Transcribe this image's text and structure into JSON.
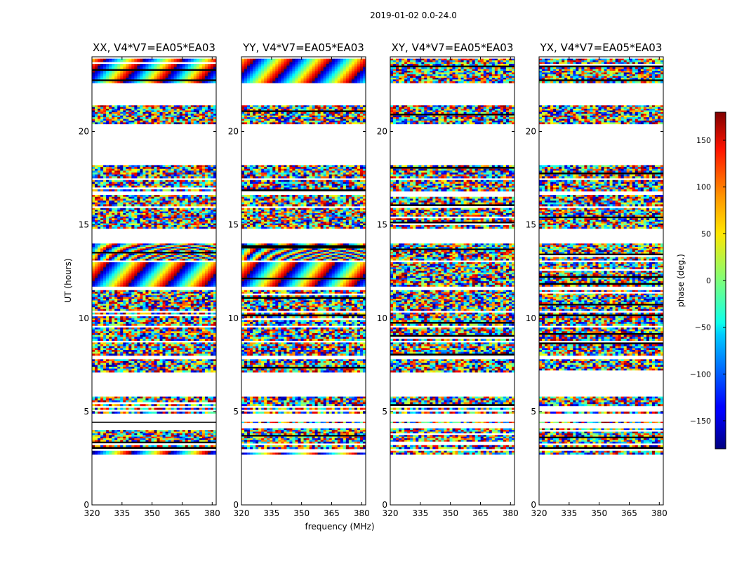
{
  "chart_data": {
    "type": "heatmap",
    "suptitle": "2019-01-02 0.0-24.0",
    "xlabel": "frequency (MHz)",
    "ylabel": "UT (hours)",
    "xlim": [
      320,
      382
    ],
    "ylim": [
      0,
      24
    ],
    "x_ticks": [
      320,
      335,
      350,
      365,
      380
    ],
    "y_ticks": [
      0,
      5,
      10,
      15,
      20
    ],
    "panels": [
      {
        "title": "XX, V4*V7=EA05*EA03"
      },
      {
        "title": "YY, V4*V7=EA05*EA03"
      },
      {
        "title": "XY, V4*V7=EA05*EA03"
      },
      {
        "title": "YX, V4*V7=EA05*EA03"
      }
    ],
    "colorbar": {
      "label": "phase (deg.)",
      "range": [
        -180,
        180
      ],
      "ticks": [
        150,
        100,
        50,
        0,
        -50,
        -100,
        -150
      ],
      "colormap": "jet"
    },
    "data_blocks_hours": [
      [
        2.7,
        2.9
      ],
      [
        3.0,
        3.2
      ],
      [
        3.3,
        4.1
      ],
      [
        4.4,
        4.45
      ],
      [
        4.9,
        5.0
      ],
      [
        5.1,
        5.2
      ],
      [
        5.3,
        5.8
      ],
      [
        7.1,
        7.8
      ],
      [
        8.0,
        8.7
      ],
      [
        8.8,
        9.5
      ],
      [
        9.6,
        10.3
      ],
      [
        10.4,
        11.5
      ],
      [
        11.7,
        13.0
      ],
      [
        13.1,
        14.0
      ],
      [
        14.8,
        15.9
      ],
      [
        16.0,
        16.6
      ],
      [
        16.8,
        17.4
      ],
      [
        17.5,
        18.2
      ],
      [
        20.4,
        21.4
      ],
      [
        22.6,
        23.9
      ]
    ],
    "fringe_blocks_hours": [
      [
        2.7,
        2.9
      ],
      [
        3.6,
        3.9
      ],
      [
        9.6,
        9.9
      ],
      [
        11.7,
        13.9
      ],
      [
        17.1,
        17.4
      ],
      [
        22.6,
        23.9
      ]
    ]
  }
}
